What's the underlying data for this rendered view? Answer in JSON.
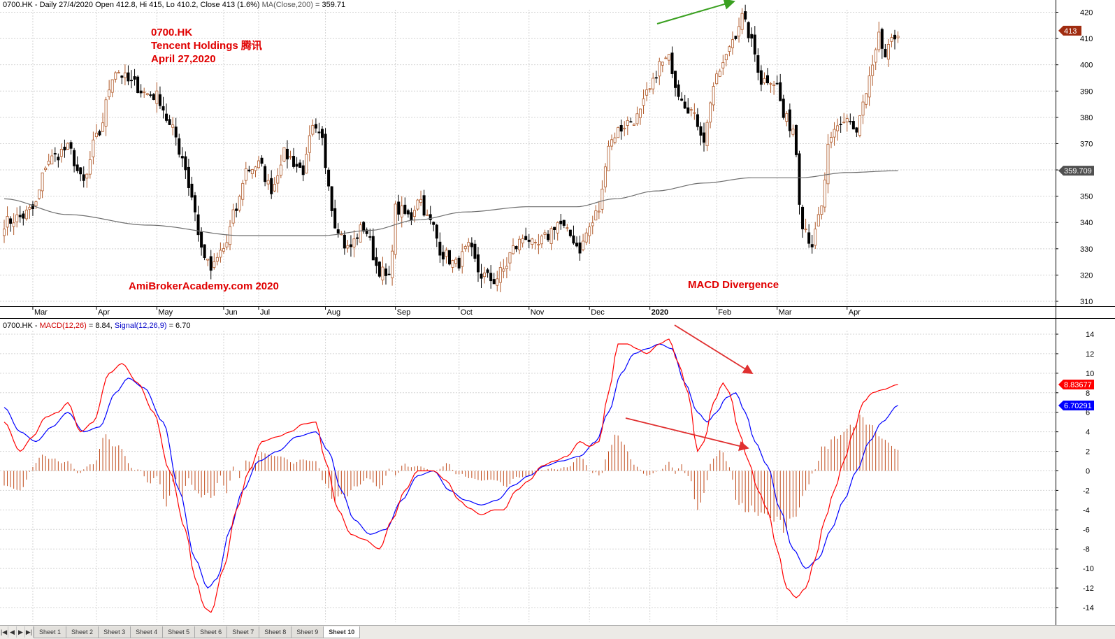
{
  "header": {
    "price_prefix": "0700.HK - Daily 27/4/2020 Open 412.8, Hi 415, Lo 410.2, Close 413 (1.6%)",
    "ma_label": "MA(Close,200)",
    "ma_value": " = 359.71",
    "macd_prefix": "0700.HK - ",
    "macd_label": "MACD(12,26)",
    "macd_value": " = 8.84, ",
    "signal_label": "Signal(12,26,9)",
    "signal_value": " = 6.70"
  },
  "annotations": {
    "ticker": "0700.HK",
    "company": "Tencent Holdings 腾讯",
    "date": "April 27,2020",
    "watermark": "AmiBrokerAcademy.com   2020",
    "divergence": "MACD Divergence"
  },
  "price_tags": {
    "close": "413",
    "ma": "359.709"
  },
  "macd_tags": {
    "macd": "8.83677",
    "signal": "6.70291"
  },
  "colors": {
    "up": "#b05a2a",
    "down": "#000000",
    "ma": "#6e6e6e",
    "macd": "#ff0000",
    "signal": "#0000ff",
    "hist": "#c04a1a",
    "arrow_green": "#3aa020",
    "arrow_red": "#e03030",
    "close_tag": "#a02c10",
    "ma_tag": "#505050"
  },
  "tabs": [
    "Sheet 1",
    "Sheet 2",
    "Sheet 3",
    "Sheet 4",
    "Sheet 5",
    "Sheet 6",
    "Sheet 7",
    "Sheet 8",
    "Sheet 9",
    "Sheet 10"
  ],
  "chart_data": [
    {
      "type": "candlestick",
      "xlabel": "",
      "ylabel": "",
      "ylim": [
        305,
        425
      ],
      "y_ticks": [
        310,
        320,
        330,
        340,
        350,
        360,
        370,
        380,
        390,
        400,
        410,
        420
      ],
      "x_months": [
        {
          "label": "Mar",
          "bar": 9
        },
        {
          "label": "Apr",
          "bar": 29
        },
        {
          "label": "May",
          "bar": 48
        },
        {
          "label": "Jun",
          "bar": 69
        },
        {
          "label": "Jul",
          "bar": 80
        },
        {
          "label": "Aug",
          "bar": 101
        },
        {
          "label": "Sep",
          "bar": 123
        },
        {
          "label": "Oct",
          "bar": 143
        },
        {
          "label": "Nov",
          "bar": 165
        },
        {
          "label": "Dec",
          "bar": 184
        },
        {
          "label": "2020",
          "bar": 203
        },
        {
          "label": "Feb",
          "bar": 224
        },
        {
          "label": "Mar",
          "bar": 243
        },
        {
          "label": "Apr",
          "bar": 265
        }
      ],
      "n_bars": 281,
      "close_anchors": [
        [
          0,
          340
        ],
        [
          5,
          342
        ],
        [
          9,
          345
        ],
        [
          14,
          364
        ],
        [
          20,
          368
        ],
        [
          25,
          355
        ],
        [
          29,
          372
        ],
        [
          35,
          398
        ],
        [
          40,
          393
        ],
        [
          45,
          389
        ],
        [
          48,
          388
        ],
        [
          53,
          375
        ],
        [
          56,
          365
        ],
        [
          59,
          350
        ],
        [
          62,
          330
        ],
        [
          65,
          322
        ],
        [
          69,
          330
        ],
        [
          73,
          345
        ],
        [
          76,
          360
        ],
        [
          80,
          362
        ],
        [
          84,
          353
        ],
        [
          88,
          366
        ],
        [
          94,
          360
        ],
        [
          97,
          375
        ],
        [
          100,
          371
        ],
        [
          101,
          362
        ],
        [
          104,
          340
        ],
        [
          108,
          330
        ],
        [
          113,
          338
        ],
        [
          118,
          322
        ],
        [
          121,
          318
        ],
        [
          123,
          345
        ],
        [
          128,
          342
        ],
        [
          130,
          350
        ],
        [
          134,
          340
        ],
        [
          138,
          328
        ],
        [
          142,
          324
        ],
        [
          146,
          330
        ],
        [
          150,
          320
        ],
        [
          154,
          318
        ],
        [
          157,
          322
        ],
        [
          160,
          330
        ],
        [
          164,
          335
        ],
        [
          167,
          330
        ],
        [
          170,
          334
        ],
        [
          174,
          340
        ],
        [
          178,
          335
        ],
        [
          181,
          330
        ],
        [
          184,
          338
        ],
        [
          187,
          345
        ],
        [
          190,
          370
        ],
        [
          193,
          375
        ],
        [
          196,
          378
        ],
        [
          199,
          380
        ],
        [
          203,
          390
        ],
        [
          206,
          400
        ],
        [
          209,
          402
        ],
        [
          212,
          390
        ],
        [
          215,
          384
        ],
        [
          218,
          378
        ],
        [
          220,
          372
        ],
        [
          223,
          392
        ],
        [
          226,
          400
        ],
        [
          229,
          410
        ],
        [
          232,
          418
        ],
        [
          234,
          412
        ],
        [
          236,
          404
        ],
        [
          238,
          394
        ],
        [
          241,
          395
        ],
        [
          243,
          392
        ],
        [
          245,
          380
        ],
        [
          248,
          376
        ],
        [
          251,
          340
        ],
        [
          254,
          332
        ],
        [
          257,
          345
        ],
        [
          259,
          368
        ],
        [
          262,
          376
        ],
        [
          265,
          380
        ],
        [
          268,
          374
        ],
        [
          270,
          385
        ],
        [
          273,
          398
        ],
        [
          275,
          410
        ],
        [
          277,
          403
        ],
        [
          279,
          408
        ],
        [
          281,
          413
        ]
      ],
      "ma200_anchors": [
        [
          0,
          349
        ],
        [
          20,
          343
        ],
        [
          45,
          339
        ],
        [
          75,
          335
        ],
        [
          100,
          335
        ],
        [
          115,
          337
        ],
        [
          130,
          341
        ],
        [
          145,
          344
        ],
        [
          165,
          346
        ],
        [
          180,
          346
        ],
        [
          192,
          349
        ],
        [
          205,
          352
        ],
        [
          220,
          355
        ],
        [
          235,
          357
        ],
        [
          250,
          357
        ],
        [
          265,
          359
        ],
        [
          281,
          359.71
        ]
      ]
    },
    {
      "type": "line",
      "series": [
        {
          "name": "MACD(12,26)",
          "value": 8.84
        },
        {
          "name": "Signal(12,26,9)",
          "value": 6.7
        }
      ],
      "ylim": [
        -16,
        15
      ],
      "y_ticks": [
        14,
        12,
        10,
        8,
        6,
        4,
        2,
        0,
        -2,
        -4,
        -6,
        -8,
        -10,
        -12,
        -14
      ],
      "macd_anchors": [
        [
          0,
          5
        ],
        [
          5,
          2
        ],
        [
          9,
          3.5
        ],
        [
          13,
          5.5
        ],
        [
          17,
          6
        ],
        [
          20,
          7
        ],
        [
          24,
          4
        ],
        [
          28,
          5
        ],
        [
          33,
          10
        ],
        [
          37,
          11
        ],
        [
          42,
          9
        ],
        [
          47,
          6
        ],
        [
          52,
          0
        ],
        [
          57,
          -6
        ],
        [
          60,
          -11
        ],
        [
          63,
          -14
        ],
        [
          65,
          -14.5
        ],
        [
          69,
          -10
        ],
        [
          73,
          -4
        ],
        [
          77,
          0
        ],
        [
          81,
          3
        ],
        [
          86,
          3.5
        ],
        [
          90,
          4
        ],
        [
          94,
          4.8
        ],
        [
          98,
          5
        ],
        [
          101,
          1
        ],
        [
          105,
          -4
        ],
        [
          109,
          -6.5
        ],
        [
          113,
          -7
        ],
        [
          118,
          -8
        ],
        [
          122,
          -5
        ],
        [
          126,
          -2
        ],
        [
          130,
          0
        ],
        [
          135,
          0
        ],
        [
          139,
          -1
        ],
        [
          143,
          -3
        ],
        [
          146,
          -3.8
        ],
        [
          150,
          -4.5
        ],
        [
          154,
          -4
        ],
        [
          157,
          -4
        ],
        [
          161,
          -2
        ],
        [
          165,
          -1
        ],
        [
          169,
          0.5
        ],
        [
          173,
          1
        ],
        [
          177,
          1.5
        ],
        [
          181,
          3
        ],
        [
          184,
          2.5
        ],
        [
          187,
          3
        ],
        [
          190,
          8
        ],
        [
          193,
          13
        ],
        [
          196,
          13
        ],
        [
          199,
          12.5
        ],
        [
          202,
          12
        ],
        [
          206,
          13
        ],
        [
          209,
          13.5
        ],
        [
          212,
          11
        ],
        [
          215,
          8
        ],
        [
          218,
          2
        ],
        [
          220,
          3
        ],
        [
          223,
          7
        ],
        [
          226,
          9
        ],
        [
          228,
          8
        ],
        [
          231,
          4
        ],
        [
          234,
          1
        ],
        [
          237,
          -2
        ],
        [
          240,
          -4
        ],
        [
          243,
          -8
        ],
        [
          246,
          -12
        ],
        [
          249,
          -13
        ],
        [
          252,
          -12
        ],
        [
          255,
          -9
        ],
        [
          258,
          -5
        ],
        [
          261,
          -2
        ],
        [
          264,
          1
        ],
        [
          267,
          4
        ],
        [
          270,
          7
        ],
        [
          273,
          8
        ],
        [
          276,
          8.3
        ],
        [
          281,
          8.84
        ]
      ],
      "signal_anchors": [
        [
          0,
          6.5
        ],
        [
          5,
          4
        ],
        [
          10,
          3
        ],
        [
          15,
          4.5
        ],
        [
          20,
          6
        ],
        [
          25,
          4
        ],
        [
          30,
          4.5
        ],
        [
          35,
          8
        ],
        [
          39,
          9.5
        ],
        [
          44,
          8.5
        ],
        [
          50,
          5
        ],
        [
          55,
          -2
        ],
        [
          60,
          -9
        ],
        [
          64,
          -12
        ],
        [
          67,
          -11
        ],
        [
          71,
          -6
        ],
        [
          75,
          -2
        ],
        [
          80,
          1
        ],
        [
          86,
          2
        ],
        [
          92,
          3.5
        ],
        [
          98,
          4
        ],
        [
          102,
          2
        ],
        [
          106,
          -2
        ],
        [
          110,
          -5
        ],
        [
          115,
          -6.5
        ],
        [
          120,
          -6
        ],
        [
          125,
          -3
        ],
        [
          130,
          -0.5
        ],
        [
          135,
          0
        ],
        [
          140,
          -2
        ],
        [
          145,
          -3
        ],
        [
          150,
          -3.5
        ],
        [
          155,
          -3
        ],
        [
          160,
          -1.5
        ],
        [
          165,
          -0.5
        ],
        [
          170,
          0.5
        ],
        [
          175,
          1
        ],
        [
          181,
          1.5
        ],
        [
          186,
          3
        ],
        [
          190,
          6
        ],
        [
          194,
          10
        ],
        [
          198,
          12
        ],
        [
          202,
          12.5
        ],
        [
          206,
          13
        ],
        [
          210,
          12.5
        ],
        [
          214,
          9
        ],
        [
          218,
          6
        ],
        [
          221,
          5
        ],
        [
          224,
          6
        ],
        [
          227,
          7.5
        ],
        [
          230,
          8
        ],
        [
          233,
          6
        ],
        [
          236,
          3
        ],
        [
          240,
          0.5
        ],
        [
          244,
          -4
        ],
        [
          248,
          -8
        ],
        [
          252,
          -10
        ],
        [
          256,
          -9
        ],
        [
          260,
          -6
        ],
        [
          264,
          -3
        ],
        [
          268,
          0
        ],
        [
          272,
          3
        ],
        [
          276,
          5
        ],
        [
          281,
          6.7
        ]
      ]
    }
  ]
}
